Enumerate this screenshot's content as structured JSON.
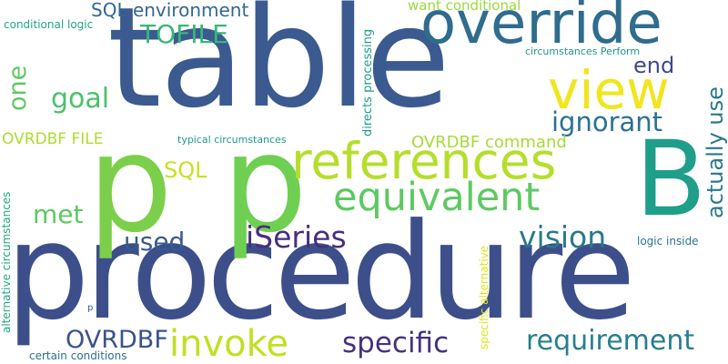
{
  "words": [
    {
      "text": "table",
      "color": "#3b5a8f",
      "vertical": false
    },
    {
      "text": "procedure",
      "color": "#3d4f8a",
      "vertical": false
    },
    {
      "text": "p",
      "color": "#7ccf4b",
      "vertical": false
    },
    {
      "text": "p",
      "color": "#6fcf52",
      "vertical": false
    },
    {
      "text": "override",
      "color": "#2f6c8e",
      "vertical": false
    },
    {
      "text": "references",
      "color": "#b5de2b",
      "vertical": false
    },
    {
      "text": "B",
      "color": "#1f9e89",
      "vertical": false
    },
    {
      "text": "view",
      "color": "#f1e51d",
      "vertical": false
    },
    {
      "text": "equivalent",
      "color": "#5ec962",
      "vertical": false
    },
    {
      "text": "invoke",
      "color": "#c2df23",
      "vertical": false
    },
    {
      "text": "specific",
      "color": "#46327e",
      "vertical": false
    },
    {
      "text": "requirement",
      "color": "#277f8e",
      "vertical": false
    },
    {
      "text": "vision",
      "color": "#2a788e",
      "vertical": false
    },
    {
      "text": "iSeries",
      "color": "#472f7d",
      "vertical": false
    },
    {
      "text": "ignorant",
      "color": "#2c728e",
      "vertical": false
    },
    {
      "text": "goal",
      "color": "#4ac16d",
      "vertical": false
    },
    {
      "text": "OVRDBF",
      "color": "#3b528b",
      "vertical": false
    },
    {
      "text": "used",
      "color": "#365c8d",
      "vertical": false
    },
    {
      "text": "met",
      "color": "#5cc863",
      "vertical": false
    },
    {
      "text": "TOFILE",
      "color": "#35b779",
      "vertical": false
    },
    {
      "text": "SQL environment",
      "color": "#31688e",
      "vertical": false
    },
    {
      "text": "end",
      "color": "#3e4989",
      "vertical": false
    },
    {
      "text": "SQL",
      "color": "#c8e020",
      "vertical": false
    },
    {
      "text": "OVRDBF command",
      "color": "#a5db36",
      "vertical": false
    },
    {
      "text": "OVRDBF FILE",
      "color": "#addc30",
      "vertical": false
    },
    {
      "text": "actually use",
      "color": "#29798e",
      "vertical": true
    },
    {
      "text": "one",
      "color": "#5ec962",
      "vertical": true
    },
    {
      "text": "want conditional",
      "color": "#9bd93c",
      "vertical": false
    },
    {
      "text": "conditional logic",
      "color": "#21a685",
      "vertical": false
    },
    {
      "text": "typical circumstances",
      "color": "#1f9a8a",
      "vertical": false
    },
    {
      "text": "circumstances Perform",
      "color": "#1f968b",
      "vertical": false
    },
    {
      "text": "directs processing",
      "color": "#1e9c89",
      "vertical": true
    },
    {
      "text": "logic inside",
      "color": "#2c718e",
      "vertical": false
    },
    {
      "text": "alternative circumstances",
      "color": "#22a884",
      "vertical": true
    },
    {
      "text": "specific alternative",
      "color": "#dde318",
      "vertical": true
    },
    {
      "text": "certain conditions",
      "color": "#2e6e8e",
      "vertical": false
    },
    {
      "text": "p",
      "color": "#38598c",
      "vertical": false
    }
  ]
}
